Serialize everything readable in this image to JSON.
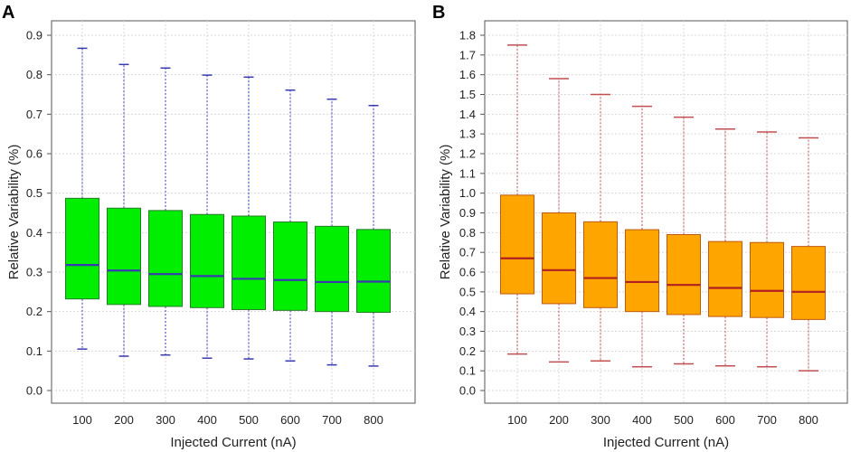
{
  "chart_data": [
    {
      "panel": "A",
      "type": "box",
      "xlabel": "Injected Current (nA)",
      "ylabel": "Relative Variability (%)",
      "ylim": [
        0,
        0.9
      ],
      "yticks": [
        "0.0",
        "0.1",
        "0.2",
        "0.3",
        "0.4",
        "0.5",
        "0.6",
        "0.7",
        "0.8",
        "0.9"
      ],
      "grid": true,
      "colors": {
        "box_fill": "#00ee00",
        "box_edge": "#2a7a2a",
        "median": "#3a3ab0",
        "whisker": "#3a3ab0"
      },
      "categories": [
        "100",
        "200",
        "300",
        "400",
        "500",
        "600",
        "700",
        "800"
      ],
      "boxes": [
        {
          "min": 0.105,
          "q1": 0.232,
          "median": 0.318,
          "q3": 0.487,
          "max": 0.867
        },
        {
          "min": 0.087,
          "q1": 0.218,
          "median": 0.304,
          "q3": 0.462,
          "max": 0.826
        },
        {
          "min": 0.09,
          "q1": 0.213,
          "median": 0.295,
          "q3": 0.456,
          "max": 0.817
        },
        {
          "min": 0.082,
          "q1": 0.21,
          "median": 0.29,
          "q3": 0.446,
          "max": 0.799
        },
        {
          "min": 0.08,
          "q1": 0.205,
          "median": 0.283,
          "q3": 0.442,
          "max": 0.794
        },
        {
          "min": 0.075,
          "q1": 0.203,
          "median": 0.28,
          "q3": 0.427,
          "max": 0.761
        },
        {
          "min": 0.065,
          "q1": 0.2,
          "median": 0.275,
          "q3": 0.416,
          "max": 0.738
        },
        {
          "min": 0.062,
          "q1": 0.198,
          "median": 0.276,
          "q3": 0.408,
          "max": 0.722
        }
      ]
    },
    {
      "panel": "B",
      "type": "box",
      "xlabel": "Injected Current (nA)",
      "ylabel": "Relative Variability (%)",
      "ylim": [
        0,
        1.8
      ],
      "yticks": [
        "0.0",
        "0.1",
        "0.2",
        "0.3",
        "0.4",
        "0.5",
        "0.6",
        "0.7",
        "0.8",
        "0.9",
        "1.0",
        "1.1",
        "1.2",
        "1.3",
        "1.4",
        "1.5",
        "1.6",
        "1.7",
        "1.8"
      ],
      "grid": true,
      "colors": {
        "box_fill": "#ffa500",
        "box_edge": "#c05a10",
        "median": "#b02020",
        "whisker": "#c05050"
      },
      "categories": [
        "100",
        "200",
        "300",
        "400",
        "500",
        "600",
        "700",
        "800"
      ],
      "boxes": [
        {
          "min": 0.185,
          "q1": 0.49,
          "median": 0.67,
          "q3": 0.99,
          "max": 1.75
        },
        {
          "min": 0.145,
          "q1": 0.44,
          "median": 0.61,
          "q3": 0.9,
          "max": 1.58
        },
        {
          "min": 0.15,
          "q1": 0.42,
          "median": 0.57,
          "q3": 0.855,
          "max": 1.5
        },
        {
          "min": 0.12,
          "q1": 0.4,
          "median": 0.55,
          "q3": 0.815,
          "max": 1.44
        },
        {
          "min": 0.135,
          "q1": 0.385,
          "median": 0.535,
          "q3": 0.79,
          "max": 1.385
        },
        {
          "min": 0.125,
          "q1": 0.375,
          "median": 0.52,
          "q3": 0.755,
          "max": 1.325
        },
        {
          "min": 0.12,
          "q1": 0.37,
          "median": 0.505,
          "q3": 0.75,
          "max": 1.31
        },
        {
          "min": 0.1,
          "q1": 0.36,
          "median": 0.5,
          "q3": 0.73,
          "max": 1.28
        }
      ]
    }
  ]
}
